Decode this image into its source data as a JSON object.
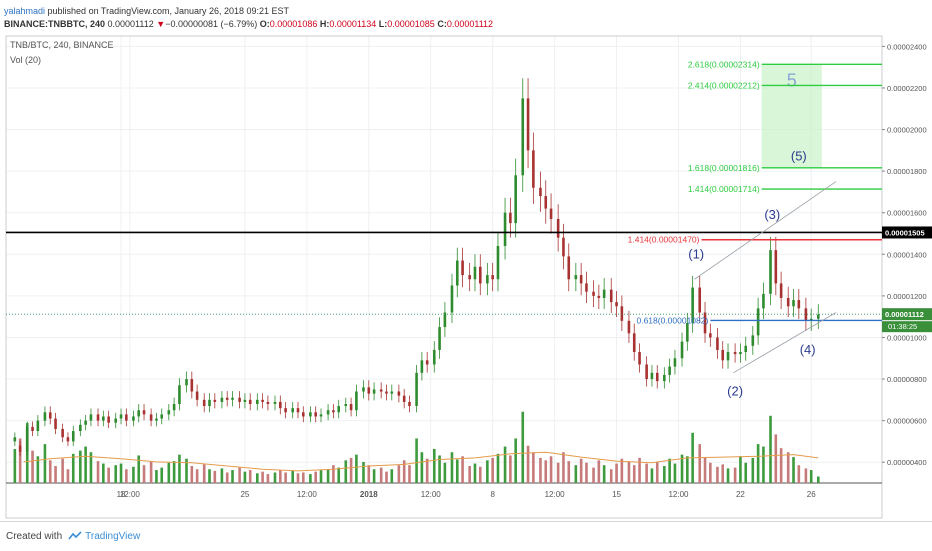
{
  "header": {
    "author": "yalahmadi",
    "published": " published on TradingView.com, January 26, 2018 09:21 EST",
    "symbol": "BINANCE:TNBBTC, 240",
    "last": "0.00001112",
    "change_arrow": "▼",
    "change": "−0.00000081 (−6.79%)",
    "o_label": "O:",
    "o": "0.00001086",
    "h_label": "H:",
    "h": "0.00001134",
    "l_label": "L:",
    "l": "0.00001085",
    "c_label": "C:",
    "c": "0.00001112"
  },
  "legend": {
    "pair": "TNB/BTC, 240, BINANCE",
    "vol": "Vol (20)"
  },
  "footer": {
    "created_with": "Created with",
    "brand": "TradingView"
  },
  "colors": {
    "up": "#2e8b2e",
    "down": "#a83232",
    "vol_up": "#3d9a3d",
    "vol_down": "#c67a7a",
    "fib_green": "#2ecc40",
    "fib_red": "#e8363a",
    "fib_blue": "#2f6fc6",
    "black_line": "#000000",
    "vol_ma": "#e59b4a",
    "wave_label": "#2b3b8f"
  },
  "chart_data": {
    "type": "candlestick",
    "price_axis": {
      "min": 3e-06,
      "max": 2.45e-05,
      "ticks": [
        "0.00000400",
        "0.00000600",
        "0.00000800",
        "0.00001000",
        "0.00001200",
        "0.00001400",
        "0.00001600",
        "0.00001800",
        "0.00002000",
        "0.00002200",
        "0.00002400"
      ],
      "current_label": "0.00001112",
      "current_value": 1.112e-05,
      "countdown": "01:38:25",
      "black_line_label": "0.00001505",
      "black_line_value": 1.505e-05
    },
    "x_axis": {
      "labels": [
        "18",
        "12:00",
        "25",
        "12:00",
        "2018",
        "12:00",
        "8",
        "12:00",
        "15",
        "12:00",
        "22",
        "26"
      ],
      "label_day": [
        18,
        18.5,
        25,
        28.5,
        32,
        35.5,
        39,
        42.5,
        46,
        49.5,
        53,
        57
      ]
    },
    "day_range": [
      11.5,
      61
    ],
    "last_day": 57.4,
    "candles": [
      [
        12.0,
        5e-06,
        5.2e-06
      ],
      [
        12.3,
        4.8e-06,
        4.5e-06
      ],
      [
        12.7,
        4.5e-06,
        5.7e-06
      ],
      [
        13.0,
        5.7e-06,
        5.5e-06
      ],
      [
        13.3,
        5.5e-06,
        6e-06
      ],
      [
        13.7,
        6e-06,
        6.4e-06
      ],
      [
        14.0,
        6.4e-06,
        6.1e-06
      ],
      [
        14.3,
        6.1e-06,
        5.6e-06
      ],
      [
        14.7,
        5.6e-06,
        5.2e-06
      ],
      [
        15.0,
        5.2e-06,
        5e-06
      ],
      [
        15.3,
        5e-06,
        5.5e-06
      ],
      [
        15.7,
        5.5e-06,
        5.8e-06
      ],
      [
        16.0,
        5.8e-06,
        6e-06
      ],
      [
        16.3,
        6e-06,
        6.3e-06
      ],
      [
        16.7,
        6.3e-06,
        6e-06
      ],
      [
        17.0,
        6e-06,
        6.2e-06
      ],
      [
        17.3,
        6.2e-06,
        5.9e-06
      ],
      [
        17.7,
        5.9e-06,
        6.1e-06
      ],
      [
        18.0,
        6.1e-06,
        6.3e-06
      ],
      [
        18.3,
        6.3e-06,
        6e-06
      ],
      [
        18.7,
        6e-06,
        6.2e-06
      ],
      [
        19.0,
        6.2e-06,
        6.5e-06
      ],
      [
        19.3,
        6.5e-06,
        6.3e-06
      ],
      [
        19.7,
        6.3e-06,
        6e-06
      ],
      [
        20.0,
        6e-06,
        6.1e-06
      ],
      [
        20.3,
        6.1e-06,
        6.3e-06
      ],
      [
        20.7,
        6.3e-06,
        6.5e-06
      ],
      [
        21.0,
        6.5e-06,
        6.8e-06
      ],
      [
        21.3,
        6.8e-06,
        7.7e-06
      ],
      [
        21.7,
        7.7e-06,
        8e-06
      ],
      [
        22.0,
        8e-06,
        7.4e-06
      ],
      [
        22.3,
        7.4e-06,
        7e-06
      ],
      [
        22.7,
        7e-06,
        6.7e-06
      ],
      [
        23.0,
        6.7e-06,
        7e-06
      ],
      [
        23.3,
        7e-06,
        6.9e-06
      ],
      [
        23.7,
        6.9e-06,
        7.1e-06
      ],
      [
        24.0,
        7.1e-06,
        7e-06
      ],
      [
        24.3,
        7e-06,
        7.1e-06
      ],
      [
        24.7,
        7.1e-06,
        6.9e-06
      ],
      [
        25.0,
        6.9e-06,
        7e-06
      ],
      [
        25.3,
        7e-06,
        6.8e-06
      ],
      [
        25.7,
        6.8e-06,
        7e-06
      ],
      [
        26.0,
        7e-06,
        6.9e-06
      ],
      [
        26.3,
        6.9e-06,
        6.8e-06
      ],
      [
        26.7,
        6.8e-06,
        6.9e-06
      ],
      [
        27.0,
        6.9e-06,
        6.6e-06
      ],
      [
        27.3,
        6.6e-06,
        6.4e-06
      ],
      [
        27.7,
        6.4e-06,
        6.6e-06
      ],
      [
        28.0,
        6.6e-06,
        6.4e-06
      ],
      [
        28.3,
        6.4e-06,
        6.2e-06
      ],
      [
        28.7,
        6.2e-06,
        6.4e-06
      ],
      [
        29.0,
        6.4e-06,
        6.2e-06
      ],
      [
        29.3,
        6.2e-06,
        6.3e-06
      ],
      [
        29.7,
        6.3e-06,
        6.5e-06
      ],
      [
        30.0,
        6.5e-06,
        6.4e-06
      ],
      [
        30.3,
        6.4e-06,
        6.7e-06
      ],
      [
        30.7,
        6.7e-06,
        6.8e-06
      ],
      [
        31.0,
        6.8e-06,
        6.5e-06
      ],
      [
        31.3,
        6.5e-06,
        7.4e-06
      ],
      [
        31.7,
        7.4e-06,
        7.6e-06
      ],
      [
        32.0,
        7.6e-06,
        7.3e-06
      ],
      [
        32.3,
        7.3e-06,
        7.5e-06
      ],
      [
        32.7,
        7.5e-06,
        7.4e-06
      ],
      [
        33.0,
        7.4e-06,
        7.3e-06
      ],
      [
        33.3,
        7.3e-06,
        7.4e-06
      ],
      [
        33.7,
        7.4e-06,
        7.2e-06
      ],
      [
        34.0,
        7.2e-06,
        6.9e-06
      ],
      [
        34.3,
        6.9e-06,
        6.7e-06
      ],
      [
        34.7,
        6.7e-06,
        8.3e-06
      ],
      [
        35.0,
        8.3e-06,
        8.9e-06
      ],
      [
        35.3,
        8.9e-06,
        8.7e-06
      ],
      [
        35.7,
        8.7e-06,
        9.4e-06
      ],
      [
        36.0,
        9.4e-06,
        1.05e-05
      ],
      [
        36.3,
        1.05e-05,
        1.12e-05
      ],
      [
        36.7,
        1.12e-05,
        1.25e-05
      ],
      [
        37.0,
        1.25e-05,
        1.37e-05
      ],
      [
        37.3,
        1.37e-05,
        1.3e-05
      ],
      [
        37.7,
        1.3e-05,
        1.28e-05
      ],
      [
        38.0,
        1.28e-05,
        1.34e-05
      ],
      [
        38.3,
        1.34e-05,
        1.26e-05
      ],
      [
        38.7,
        1.26e-05,
        1.3e-05
      ],
      [
        39.0,
        1.3e-05,
        1.28e-05
      ],
      [
        39.3,
        1.28e-05,
        1.44e-05
      ],
      [
        39.7,
        1.44e-05,
        1.6e-05
      ],
      [
        40.0,
        1.6e-05,
        1.55e-05
      ],
      [
        40.3,
        1.55e-05,
        1.78e-05
      ],
      [
        40.7,
        1.78e-05,
        2.15e-05
      ],
      [
        41.0,
        2.15e-05,
        1.9e-05
      ],
      [
        41.3,
        1.9e-05,
        1.72e-05
      ],
      [
        41.7,
        1.72e-05,
        1.68e-05
      ],
      [
        42.0,
        1.68e-05,
        1.62e-05
      ],
      [
        42.3,
        1.62e-05,
        1.57e-05
      ],
      [
        42.7,
        1.57e-05,
        1.48e-05
      ],
      [
        43.0,
        1.48e-05,
        1.39e-05
      ],
      [
        43.3,
        1.39e-05,
        1.28e-05
      ],
      [
        43.7,
        1.28e-05,
        1.3e-05
      ],
      [
        44.0,
        1.3e-05,
        1.26e-05
      ],
      [
        44.3,
        1.26e-05,
        1.22e-05
      ],
      [
        44.7,
        1.22e-05,
        1.2e-05
      ],
      [
        45.0,
        1.2e-05,
        1.19e-05
      ],
      [
        45.3,
        1.19e-05,
        1.23e-05
      ],
      [
        45.7,
        1.23e-05,
        1.17e-05
      ],
      [
        46.0,
        1.17e-05,
        1.15e-05
      ],
      [
        46.3,
        1.15e-05,
        1.08e-05
      ],
      [
        46.7,
        1.08e-05,
        1.02e-05
      ],
      [
        47.0,
        1.02e-05,
        9.3e-06
      ],
      [
        47.3,
        9.3e-06,
        8.7e-06
      ],
      [
        47.7,
        8.7e-06,
        8e-06
      ],
      [
        48.0,
        8e-06,
        8.3e-06
      ],
      [
        48.3,
        8.3e-06,
        7.9e-06
      ],
      [
        48.7,
        7.9e-06,
        8.2e-06
      ],
      [
        49.0,
        8.2e-06,
        8.6e-06
      ],
      [
        49.3,
        8.6e-06,
        9e-06
      ],
      [
        49.7,
        9e-06,
        9.8e-06
      ],
      [
        50.0,
        9.8e-06,
        1.07e-05
      ],
      [
        50.3,
        1.07e-05,
        1.24e-05
      ],
      [
        50.7,
        1.24e-05,
        1.12e-05
      ],
      [
        51.0,
        1.12e-05,
        1.02e-05
      ],
      [
        51.3,
        1.02e-05,
        1e-05
      ],
      [
        51.7,
        1e-05,
        9.4e-06
      ],
      [
        52.0,
        9.4e-06,
        8.9e-06
      ],
      [
        52.3,
        8.9e-06,
        9.3e-06
      ],
      [
        52.7,
        9.3e-06,
        9.2e-06
      ],
      [
        53.0,
        9.2e-06,
        9.3e-06
      ],
      [
        53.3,
        9.3e-06,
        9.6e-06
      ],
      [
        53.7,
        9.6e-06,
        1.01e-05
      ],
      [
        54.0,
        1.01e-05,
        1.14e-05
      ],
      [
        54.3,
        1.14e-05,
        1.21e-05
      ],
      [
        54.7,
        1.21e-05,
        1.42e-05
      ],
      [
        55.0,
        1.42e-05,
        1.26e-05
      ],
      [
        55.3,
        1.26e-05,
        1.19e-05
      ],
      [
        55.7,
        1.19e-05,
        1.15e-05
      ],
      [
        56.0,
        1.15e-05,
        1.18e-05
      ],
      [
        56.3,
        1.18e-05,
        1.14e-05
      ],
      [
        56.7,
        1.14e-05,
        1.08e-05
      ],
      [
        57.0,
        1.08e-05,
        1.09e-05
      ],
      [
        57.4,
        1.09e-05,
        1.11e-05
      ]
    ],
    "fib_levels": [
      {
        "label": "2.618(0.00002314)",
        "value": 2.314e-05,
        "color": "#2ecc40",
        "x_from": 54.2
      },
      {
        "label": "2.414(0.00002212)",
        "value": 2.212e-05,
        "color": "#2ecc40",
        "x_from": 54.2
      },
      {
        "label": "1.618(0.00001816)",
        "value": 1.816e-05,
        "color": "#2ecc40",
        "x_from": 54.2
      },
      {
        "label": "1.414(0.00001714)",
        "value": 1.714e-05,
        "color": "#2ecc40",
        "x_from": 54.2
      },
      {
        "label": "1.414(0.00001470)",
        "value": 1.47e-05,
        "color": "#e8363a",
        "x_from": 50.8
      },
      {
        "label": "0.618(0.00001082)",
        "value": 1.082e-05,
        "color": "#2f6fc6",
        "x_from": 51.3
      }
    ],
    "target_zone": {
      "label": "5",
      "from_day": 54.2,
      "to_day": 57.6,
      "low": 1.816e-05,
      "high": 2.314e-05
    },
    "waves": [
      {
        "label": "(1)",
        "day": 50.5,
        "value": 1.38e-05
      },
      {
        "label": "(2)",
        "day": 52.7,
        "value": 7.2e-06
      },
      {
        "label": "(3)",
        "day": 54.8,
        "value": 1.57e-05
      },
      {
        "label": "(4)",
        "day": 56.8,
        "value": 9.2e-06
      },
      {
        "label": "(5)",
        "day": 56.3,
        "value": 1.85e-05
      }
    ],
    "channel": [
      {
        "from": [
          50.4,
          1.28e-05
        ],
        "to": [
          58.4,
          1.75e-05
        ]
      },
      {
        "from": [
          52.6,
          8.3e-06
        ],
        "to": [
          58.4,
          1.12e-05
        ]
      }
    ],
    "volume_bars": [
      [
        12.0,
        0.42
      ],
      [
        12.3,
        0.55
      ],
      [
        12.7,
        0.74
      ],
      [
        13.0,
        0.4
      ],
      [
        13.3,
        0.33
      ],
      [
        13.7,
        0.48
      ],
      [
        14.0,
        0.28
      ],
      [
        14.3,
        0.21
      ],
      [
        14.7,
        0.3
      ],
      [
        15.0,
        0.17
      ],
      [
        15.3,
        0.36
      ],
      [
        15.7,
        0.4
      ],
      [
        16.0,
        0.45
      ],
      [
        16.3,
        0.38
      ],
      [
        16.7,
        0.27
      ],
      [
        17.0,
        0.24
      ],
      [
        17.3,
        0.19
      ],
      [
        17.7,
        0.22
      ],
      [
        18.0,
        0.24
      ],
      [
        18.3,
        0.17
      ],
      [
        18.7,
        0.2
      ],
      [
        19.0,
        0.34
      ],
      [
        19.3,
        0.22
      ],
      [
        19.7,
        0.26
      ],
      [
        20.0,
        0.16
      ],
      [
        20.3,
        0.19
      ],
      [
        20.7,
        0.25
      ],
      [
        21.0,
        0.27
      ],
      [
        21.3,
        0.35
      ],
      [
        21.7,
        0.3
      ],
      [
        22.0,
        0.21
      ],
      [
        22.3,
        0.17
      ],
      [
        22.7,
        0.23
      ],
      [
        23.0,
        0.17
      ],
      [
        23.3,
        0.15
      ],
      [
        23.7,
        0.18
      ],
      [
        24.0,
        0.13
      ],
      [
        24.3,
        0.16
      ],
      [
        24.7,
        0.19
      ],
      [
        25.0,
        0.14
      ],
      [
        25.3,
        0.16
      ],
      [
        25.7,
        0.12
      ],
      [
        26.0,
        0.14
      ],
      [
        26.3,
        0.11
      ],
      [
        26.7,
        0.13
      ],
      [
        27.0,
        0.16
      ],
      [
        27.3,
        0.13
      ],
      [
        27.7,
        0.15
      ],
      [
        28.0,
        0.12
      ],
      [
        28.3,
        0.13
      ],
      [
        28.7,
        0.11
      ],
      [
        29.0,
        0.14
      ],
      [
        29.3,
        0.16
      ],
      [
        29.7,
        0.17
      ],
      [
        30.0,
        0.22
      ],
      [
        30.3,
        0.19
      ],
      [
        30.7,
        0.28
      ],
      [
        31.0,
        0.31
      ],
      [
        31.3,
        0.35
      ],
      [
        31.7,
        0.26
      ],
      [
        32.0,
        0.22
      ],
      [
        32.3,
        0.17
      ],
      [
        32.7,
        0.19
      ],
      [
        33.0,
        0.14
      ],
      [
        33.3,
        0.17
      ],
      [
        33.7,
        0.22
      ],
      [
        34.0,
        0.28
      ],
      [
        34.3,
        0.22
      ],
      [
        34.7,
        0.55
      ],
      [
        35.0,
        0.38
      ],
      [
        35.3,
        0.3
      ],
      [
        35.7,
        0.42
      ],
      [
        36.0,
        0.34
      ],
      [
        36.3,
        0.25
      ],
      [
        36.7,
        0.38
      ],
      [
        37.0,
        0.29
      ],
      [
        37.3,
        0.33
      ],
      [
        37.7,
        0.21
      ],
      [
        38.0,
        0.24
      ],
      [
        38.3,
        0.2
      ],
      [
        38.7,
        0.28
      ],
      [
        39.0,
        0.31
      ],
      [
        39.3,
        0.36
      ],
      [
        39.7,
        0.45
      ],
      [
        40.0,
        0.34
      ],
      [
        40.3,
        0.55
      ],
      [
        40.7,
        0.88
      ],
      [
        41.0,
        0.46
      ],
      [
        41.3,
        0.38
      ],
      [
        41.7,
        0.31
      ],
      [
        42.0,
        0.28
      ],
      [
        42.3,
        0.33
      ],
      [
        42.7,
        0.25
      ],
      [
        43.0,
        0.38
      ],
      [
        43.3,
        0.27
      ],
      [
        43.7,
        0.22
      ],
      [
        44.0,
        0.3
      ],
      [
        44.3,
        0.25
      ],
      [
        44.7,
        0.19
      ],
      [
        45.0,
        0.28
      ],
      [
        45.3,
        0.22
      ],
      [
        45.7,
        0.17
      ],
      [
        46.0,
        0.24
      ],
      [
        46.3,
        0.3
      ],
      [
        46.7,
        0.26
      ],
      [
        47.0,
        0.22
      ],
      [
        47.3,
        0.31
      ],
      [
        47.7,
        0.24
      ],
      [
        48.0,
        0.18
      ],
      [
        48.3,
        0.26
      ],
      [
        48.7,
        0.21
      ],
      [
        49.0,
        0.3
      ],
      [
        49.3,
        0.24
      ],
      [
        49.7,
        0.35
      ],
      [
        50.0,
        0.33
      ],
      [
        50.3,
        0.62
      ],
      [
        50.7,
        0.48
      ],
      [
        51.0,
        0.31
      ],
      [
        51.3,
        0.25
      ],
      [
        51.7,
        0.2
      ],
      [
        52.0,
        0.23
      ],
      [
        52.3,
        0.18
      ],
      [
        52.7,
        0.19
      ],
      [
        53.0,
        0.33
      ],
      [
        53.3,
        0.25
      ],
      [
        53.7,
        0.31
      ],
      [
        54.0,
        0.48
      ],
      [
        54.3,
        0.45
      ],
      [
        54.7,
        0.83
      ],
      [
        55.0,
        0.6
      ],
      [
        55.3,
        0.43
      ],
      [
        55.7,
        0.38
      ],
      [
        56.0,
        0.32
      ],
      [
        56.3,
        0.22
      ],
      [
        56.7,
        0.18
      ],
      [
        57.0,
        0.16
      ],
      [
        57.4,
        0.08
      ]
    ],
    "volume_ma": [
      [
        12.5,
        0.26
      ],
      [
        14,
        0.3
      ],
      [
        16,
        0.33
      ],
      [
        18,
        0.3
      ],
      [
        20,
        0.26
      ],
      [
        22,
        0.25
      ],
      [
        24,
        0.21
      ],
      [
        26,
        0.17
      ],
      [
        28,
        0.15
      ],
      [
        30,
        0.17
      ],
      [
        32,
        0.21
      ],
      [
        34,
        0.23
      ],
      [
        36,
        0.29
      ],
      [
        38,
        0.31
      ],
      [
        40,
        0.36
      ],
      [
        42,
        0.38
      ],
      [
        44,
        0.32
      ],
      [
        46,
        0.27
      ],
      [
        48,
        0.25
      ],
      [
        50,
        0.31
      ],
      [
        52,
        0.32
      ],
      [
        54,
        0.33
      ],
      [
        56,
        0.35
      ],
      [
        57.4,
        0.31
      ]
    ]
  }
}
